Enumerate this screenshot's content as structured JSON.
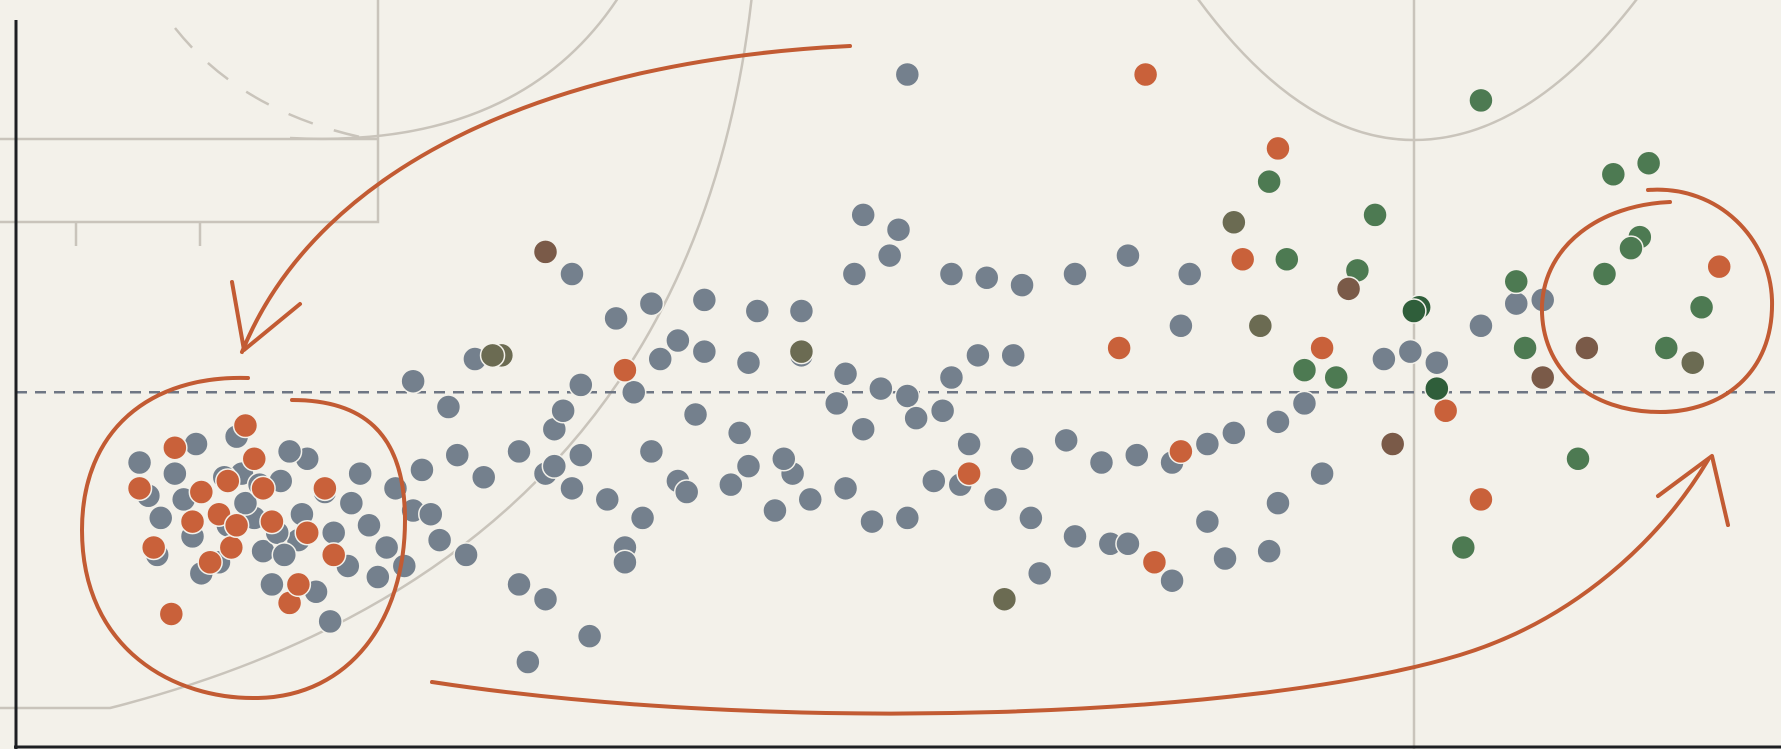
{
  "chart_data": {
    "type": "scatter",
    "title": "",
    "xlabel": "",
    "ylabel": "",
    "xlim": [
      0,
      100
    ],
    "ylim": [
      0,
      100
    ],
    "reference_line_y": 48,
    "grid": false,
    "legend": "none",
    "colors": {
      "blue": "#74808d",
      "orange": "#c9613a",
      "green": "#4d7a52",
      "darkgreen": "#2f5e3a",
      "brown": "#7a5a48",
      "olive": "#6b6b52",
      "annotation": "#c25b33",
      "background": "#f3f1ea"
    },
    "series": [
      {
        "color_key": "blue",
        "points": [
          [
            7.0,
            38.5
          ],
          [
            7.5,
            34.0
          ],
          [
            8.2,
            31.0
          ],
          [
            8.0,
            26.0
          ],
          [
            9.0,
            37.0
          ],
          [
            9.5,
            33.5
          ],
          [
            10.0,
            28.5
          ],
          [
            10.5,
            23.5
          ],
          [
            11.5,
            25.0
          ],
          [
            10.2,
            41.0
          ],
          [
            12.5,
            42.0
          ],
          [
            12.8,
            37.0
          ],
          [
            13.5,
            31.0
          ],
          [
            14.0,
            26.5
          ],
          [
            14.5,
            22.0
          ],
          [
            11.8,
            36.5
          ],
          [
            13.0,
            33.0
          ],
          [
            15.0,
            36.0
          ],
          [
            16.5,
            39.0
          ],
          [
            17.5,
            34.5
          ],
          [
            18.0,
            29.0
          ],
          [
            18.8,
            24.5
          ],
          [
            17.0,
            21.0
          ],
          [
            16.0,
            28.0
          ],
          [
            15.5,
            40.0
          ],
          [
            19.0,
            33.0
          ],
          [
            20.0,
            30.0
          ],
          [
            21.0,
            27.0
          ],
          [
            19.5,
            37.0
          ],
          [
            21.5,
            35.0
          ],
          [
            22.5,
            32.0
          ],
          [
            23.5,
            31.5
          ],
          [
            24.0,
            28.0
          ],
          [
            25.5,
            26.0
          ],
          [
            22.0,
            24.5
          ],
          [
            20.5,
            23.0
          ],
          [
            23.0,
            37.5
          ],
          [
            17.8,
            17.0
          ],
          [
            16.2,
            31.5
          ],
          [
            13.8,
            35.5
          ],
          [
            14.8,
            29.0
          ],
          [
            12.0,
            30.0
          ],
          [
            15.2,
            26.0
          ],
          [
            26.5,
            36.5
          ],
          [
            28.5,
            40.0
          ],
          [
            30.0,
            37.0
          ],
          [
            31.5,
            35.0
          ],
          [
            32.0,
            39.5
          ],
          [
            33.5,
            33.5
          ],
          [
            35.5,
            31.0
          ],
          [
            34.5,
            27.0
          ],
          [
            36.0,
            40.0
          ],
          [
            37.5,
            36.0
          ],
          [
            38.0,
            34.5
          ],
          [
            40.5,
            35.5
          ],
          [
            41.5,
            38.0
          ],
          [
            43.0,
            32.0
          ],
          [
            45.0,
            33.5
          ],
          [
            44.0,
            37.0
          ],
          [
            47.0,
            35.0
          ],
          [
            48.5,
            30.5
          ],
          [
            50.5,
            31.0
          ],
          [
            52.0,
            36.0
          ],
          [
            53.5,
            35.5
          ],
          [
            55.5,
            33.5
          ],
          [
            57.5,
            31.0
          ],
          [
            60.0,
            28.5
          ],
          [
            62.0,
            27.5
          ],
          [
            63.0,
            27.5
          ],
          [
            64.5,
            25.0
          ],
          [
            68.5,
            25.5
          ],
          [
            67.5,
            30.5
          ],
          [
            65.5,
            22.5
          ],
          [
            71.0,
            26.5
          ],
          [
            58.0,
            23.5
          ],
          [
            32.5,
            15.0
          ],
          [
            28.5,
            22.0
          ],
          [
            30.0,
            20.0
          ],
          [
            29.0,
            11.5
          ],
          [
            34.5,
            25.0
          ],
          [
            30.5,
            43.0
          ],
          [
            31.0,
            45.5
          ],
          [
            32.0,
            49.0
          ],
          [
            35.0,
            48.0
          ],
          [
            36.5,
            52.5
          ],
          [
            39.0,
            53.5
          ],
          [
            41.5,
            52.0
          ],
          [
            44.5,
            53.0
          ],
          [
            47.0,
            50.5
          ],
          [
            49.0,
            48.5
          ],
          [
            50.5,
            47.5
          ],
          [
            53.0,
            50.0
          ],
          [
            54.5,
            53.0
          ],
          [
            56.5,
            53.0
          ],
          [
            38.5,
            45.0
          ],
          [
            41.0,
            42.5
          ],
          [
            43.5,
            39.0
          ],
          [
            46.5,
            46.5
          ],
          [
            48.0,
            43.0
          ],
          [
            51.0,
            44.5
          ],
          [
            52.5,
            45.5
          ],
          [
            54.0,
            41.0
          ],
          [
            57.0,
            39.0
          ],
          [
            59.5,
            41.5
          ],
          [
            61.5,
            38.5
          ],
          [
            63.5,
            39.5
          ],
          [
            65.5,
            38.5
          ],
          [
            67.5,
            41.0
          ],
          [
            69.0,
            42.5
          ],
          [
            71.5,
            44.0
          ],
          [
            73.0,
            46.5
          ],
          [
            77.5,
            52.5
          ],
          [
            79.0,
            53.5
          ],
          [
            80.5,
            52.0
          ],
          [
            86.5,
            60.5
          ],
          [
            85.0,
            60.0
          ],
          [
            83.0,
            57.0
          ],
          [
            66.0,
            57.0
          ],
          [
            66.5,
            64.0
          ],
          [
            63.0,
            66.5
          ],
          [
            60.0,
            64.0
          ],
          [
            57.0,
            62.5
          ],
          [
            55.0,
            63.5
          ],
          [
            53.0,
            64.0
          ],
          [
            50.0,
            70.0
          ],
          [
            44.5,
            59.0
          ],
          [
            31.5,
            64.0
          ],
          [
            36.0,
            60.0
          ],
          [
            39.0,
            60.5
          ],
          [
            34.0,
            58.0
          ],
          [
            42.0,
            59.0
          ],
          [
            26.0,
            52.5
          ],
          [
            37.5,
            55.0
          ],
          [
            47.5,
            64.0
          ],
          [
            49.5,
            66.5
          ],
          [
            48.0,
            72.0
          ],
          [
            30.5,
            38.0
          ],
          [
            25.0,
            39.5
          ],
          [
            24.5,
            46.0
          ],
          [
            22.5,
            49.5
          ],
          [
            71.5,
            33.0
          ],
          [
            74.0,
            37.0
          ],
          [
            50.5,
            91.0
          ]
        ]
      },
      {
        "color_key": "orange",
        "points": [
          [
            7.0,
            35.0
          ],
          [
            9.0,
            40.5
          ],
          [
            10.5,
            34.5
          ],
          [
            11.5,
            31.5
          ],
          [
            12.2,
            27.0
          ],
          [
            13.5,
            39.0
          ],
          [
            14.5,
            30.5
          ],
          [
            16.5,
            29.0
          ],
          [
            18.0,
            26.0
          ],
          [
            8.8,
            18.0
          ],
          [
            15.5,
            19.5
          ],
          [
            13.0,
            43.5
          ],
          [
            17.5,
            35.0
          ],
          [
            12.0,
            36.0
          ],
          [
            10.0,
            30.5
          ],
          [
            16.0,
            22.0
          ],
          [
            11.0,
            25.0
          ],
          [
            14.0,
            35.0
          ],
          [
            12.5,
            30.0
          ],
          [
            7.8,
            27.0
          ],
          [
            34.5,
            51.0
          ],
          [
            54.0,
            37.0
          ],
          [
            62.5,
            54.0
          ],
          [
            66.0,
            40.0
          ],
          [
            64.5,
            25.0
          ],
          [
            69.5,
            66.0
          ],
          [
            71.5,
            81.0
          ],
          [
            74.0,
            54.0
          ],
          [
            81.0,
            45.5
          ],
          [
            83.0,
            33.5
          ],
          [
            64.0,
            91.0
          ],
          [
            96.5,
            65.0
          ]
        ]
      },
      {
        "color_key": "green",
        "points": [
          [
            71.0,
            76.5
          ],
          [
            72.0,
            66.0
          ],
          [
            73.0,
            51.0
          ],
          [
            74.8,
            50.0
          ],
          [
            76.0,
            64.5
          ],
          [
            85.0,
            63.0
          ],
          [
            85.5,
            54.0
          ],
          [
            83.0,
            87.5
          ],
          [
            82.0,
            27.0
          ],
          [
            88.5,
            39.0
          ],
          [
            90.5,
            77.5
          ],
          [
            92.5,
            79.0
          ],
          [
            92.0,
            69.0
          ],
          [
            90.0,
            64.0
          ],
          [
            93.5,
            54.0
          ],
          [
            95.5,
            59.5
          ],
          [
            91.5,
            67.5
          ],
          [
            77.0,
            72.0
          ]
        ]
      },
      {
        "color_key": "darkgreen",
        "points": [
          [
            79.5,
            59.5
          ],
          [
            80.5,
            48.5
          ],
          [
            79.2,
            59.0
          ]
        ]
      },
      {
        "color_key": "brown",
        "points": [
          [
            30.0,
            67.0
          ],
          [
            75.5,
            62.0
          ],
          [
            78.0,
            41.0
          ],
          [
            86.5,
            50.0
          ],
          [
            89.0,
            54.0
          ]
        ]
      },
      {
        "color_key": "olive",
        "points": [
          [
            27.5,
            53.0
          ],
          [
            44.5,
            53.5
          ],
          [
            56.0,
            20.0
          ],
          [
            70.5,
            57.0
          ],
          [
            69.0,
            71.0
          ],
          [
            27.0,
            53.0
          ],
          [
            95.0,
            52.0
          ]
        ]
      }
    ]
  }
}
